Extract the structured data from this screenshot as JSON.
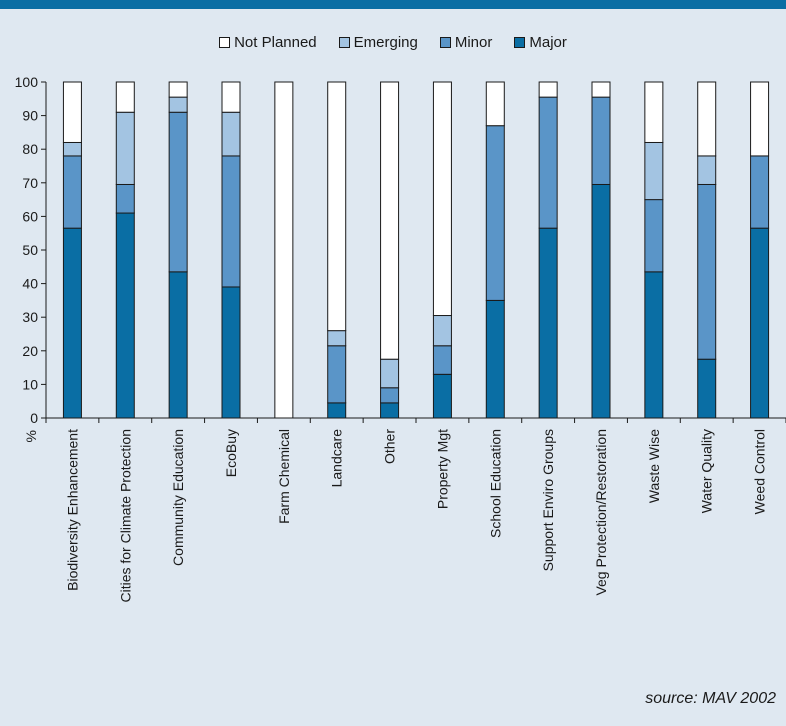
{
  "colors": {
    "background": "#dfe8f1",
    "header_bar": "#0a6ea4",
    "not_planned": "#ffffff",
    "emerging": "#a3c4e2",
    "minor": "#5a95c8",
    "major": "#0a6ea4"
  },
  "legend": {
    "items": [
      {
        "label": "Not Planned",
        "color": "#ffffff"
      },
      {
        "label": "Emerging",
        "color": "#a3c4e2"
      },
      {
        "label": "Minor",
        "color": "#5a95c8"
      },
      {
        "label": "Major",
        "color": "#0a6ea4"
      }
    ]
  },
  "source": "source: MAV 2002",
  "chart_data": {
    "type": "bar",
    "stacked": true,
    "title": "",
    "xlabel": "",
    "ylabel": "%",
    "ylim": [
      0,
      100
    ],
    "yticks": [
      0,
      10,
      20,
      30,
      40,
      50,
      60,
      70,
      80,
      90,
      100
    ],
    "grid": false,
    "legend_position": "top-center",
    "categories": [
      "Biodiversity Enhancement",
      "Cities for Climate Protection",
      "Community Education",
      "EcoBuy",
      "Farm Chemical",
      "Landcare",
      "Other",
      "Property Mgt",
      "School Education",
      "Support Enviro Groups",
      "Veg Protection/Restoration",
      "Waste Wise",
      "Water Quality",
      "Weed Control"
    ],
    "series": [
      {
        "name": "Major",
        "color": "#0a6ea4",
        "values": [
          56.5,
          61,
          43.5,
          39,
          0,
          4.5,
          4.5,
          13,
          35,
          56.5,
          69.5,
          43.5,
          17.5,
          56.5
        ]
      },
      {
        "name": "Minor",
        "color": "#5a95c8",
        "values": [
          21.5,
          8.5,
          47.5,
          39,
          0,
          17,
          4.5,
          8.5,
          52,
          39,
          26,
          21.5,
          52,
          21.5
        ]
      },
      {
        "name": "Emerging",
        "color": "#a3c4e2",
        "values": [
          4,
          21.5,
          4.5,
          13,
          0,
          4.5,
          8.5,
          9,
          0,
          0,
          0,
          17,
          8.5,
          0
        ]
      },
      {
        "name": "Not Planned",
        "color": "#ffffff",
        "values": [
          18,
          9,
          4.5,
          9,
          100,
          74,
          82.5,
          69.5,
          13,
          4.5,
          4.5,
          18,
          22,
          22
        ]
      }
    ]
  }
}
